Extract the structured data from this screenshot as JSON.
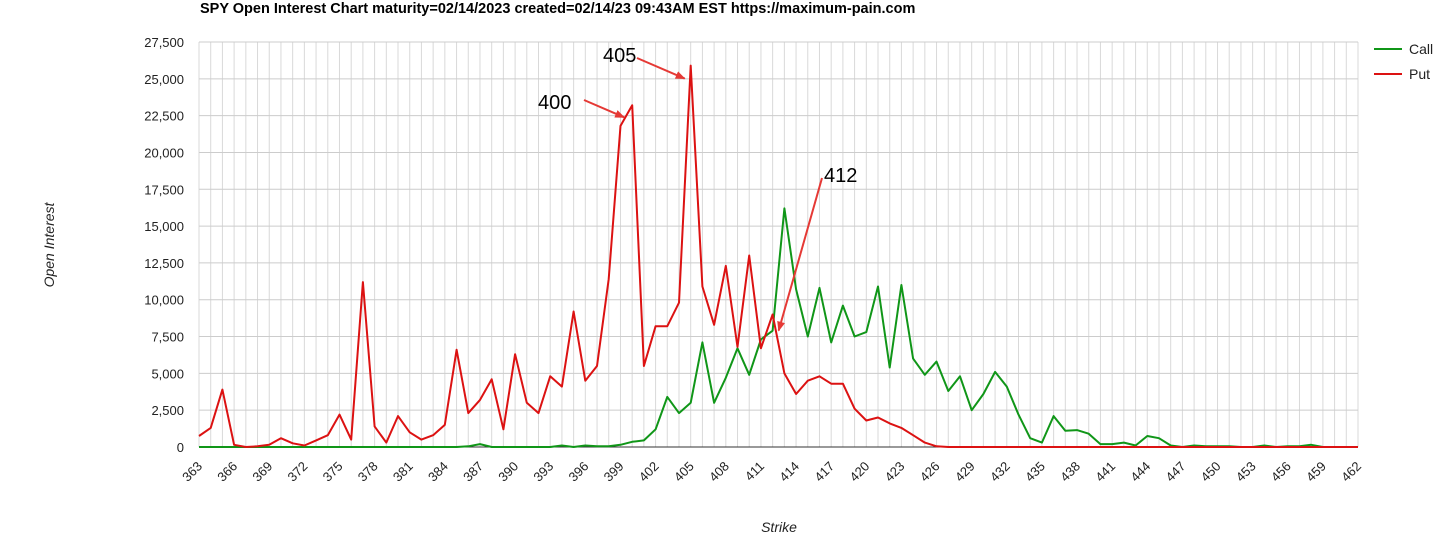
{
  "chart_data": {
    "type": "line",
    "title": "SPY Open Interest Chart maturity=02/14/2023 created=02/14/23 09:43AM EST https://maximum-pain.com",
    "xlabel": "Strike",
    "ylabel": "Open Interest",
    "ylim": [
      0,
      27500
    ],
    "yticks": [
      "0",
      "2,500",
      "5,000",
      "7,500",
      "10,000",
      "12,500",
      "15,000",
      "17,500",
      "20,000",
      "22,500",
      "25,000",
      "27,500"
    ],
    "x_tick_labels": [
      "363",
      "366",
      "369",
      "372",
      "375",
      "378",
      "381",
      "384",
      "387",
      "390",
      "393",
      "396",
      "399",
      "402",
      "405",
      "408",
      "411",
      "414",
      "417",
      "420",
      "423",
      "426",
      "429",
      "432",
      "435",
      "438",
      "441",
      "444",
      "447",
      "450",
      "453",
      "456",
      "459",
      "462"
    ],
    "x": [
      363,
      364,
      365,
      366,
      367,
      368,
      369,
      370,
      371,
      372,
      373,
      374,
      375,
      376,
      377,
      378,
      379,
      380,
      381,
      382,
      383,
      384,
      385,
      386,
      387,
      388,
      389,
      390,
      391,
      392,
      393,
      394,
      395,
      396,
      397,
      398,
      399,
      400,
      401,
      402,
      403,
      404,
      405,
      406,
      407,
      408,
      409,
      410,
      411,
      412,
      413,
      414,
      415,
      416,
      417,
      418,
      419,
      420,
      421,
      422,
      423,
      424,
      425,
      426,
      427,
      428,
      429,
      430,
      431,
      432,
      433,
      434,
      435,
      436,
      437,
      438,
      439,
      440,
      441,
      442,
      443,
      444,
      445,
      446,
      447,
      448,
      449,
      450,
      451,
      452,
      453,
      454,
      455,
      456,
      457,
      458,
      459,
      460,
      461,
      462
    ],
    "series": [
      {
        "name": "Call",
        "color": "#109618",
        "values": [
          0,
          0,
          0,
          0,
          0,
          0,
          0,
          0,
          0,
          0,
          0,
          0,
          0,
          0,
          0,
          0,
          0,
          0,
          0,
          0,
          0,
          0,
          0,
          50,
          200,
          0,
          0,
          0,
          0,
          0,
          0,
          100,
          0,
          100,
          50,
          50,
          150,
          350,
          450,
          1200,
          3400,
          2300,
          3000,
          7100,
          3000,
          4700,
          6700,
          4900,
          7300,
          7900,
          16200,
          10700,
          7500,
          10800,
          7100,
          9600,
          7500,
          7800,
          10900,
          5400,
          11000,
          6000,
          4900,
          5800,
          3800,
          4800,
          2500,
          3600,
          5100,
          4100,
          2200,
          600,
          300,
          2100,
          1100,
          1150,
          900,
          200,
          200,
          300,
          100,
          750,
          600,
          100,
          0,
          100,
          50,
          50,
          50,
          0,
          0,
          100,
          0,
          50,
          50,
          150,
          0,
          0,
          0,
          0
        ]
      },
      {
        "name": "Put",
        "color": "#dc1212",
        "values": [
          750,
          1300,
          3900,
          150,
          0,
          50,
          150,
          600,
          250,
          100,
          450,
          800,
          2200,
          500,
          11200,
          1400,
          300,
          2100,
          1000,
          500,
          800,
          1500,
          6600,
          2300,
          3200,
          4600,
          1200,
          6300,
          3000,
          2300,
          4800,
          4100,
          9200,
          4500,
          5500,
          11400,
          21800,
          23200,
          5500,
          8200,
          8200,
          9800,
          25900,
          10900,
          8300,
          12300,
          6800,
          13000,
          6700,
          9000,
          5000,
          3600,
          4500,
          4800,
          4300,
          4300,
          2600,
          1800,
          2000,
          1600,
          1300,
          800,
          300,
          50,
          0,
          0,
          0,
          0,
          0,
          0,
          0,
          0,
          0,
          0,
          0,
          0,
          0,
          0,
          0,
          0,
          0,
          0,
          0,
          0,
          0,
          0,
          0,
          0,
          0,
          0,
          0,
          0,
          0,
          0,
          0,
          0,
          0,
          0,
          0,
          0
        ]
      }
    ],
    "legend": {
      "position": "top-right",
      "items": [
        "Call",
        "Put"
      ]
    },
    "annotations": [
      {
        "text": "405",
        "strike": 405
      },
      {
        "text": "400",
        "strike": 400
      },
      {
        "text": "412",
        "strike": 412
      }
    ],
    "grid": true
  }
}
